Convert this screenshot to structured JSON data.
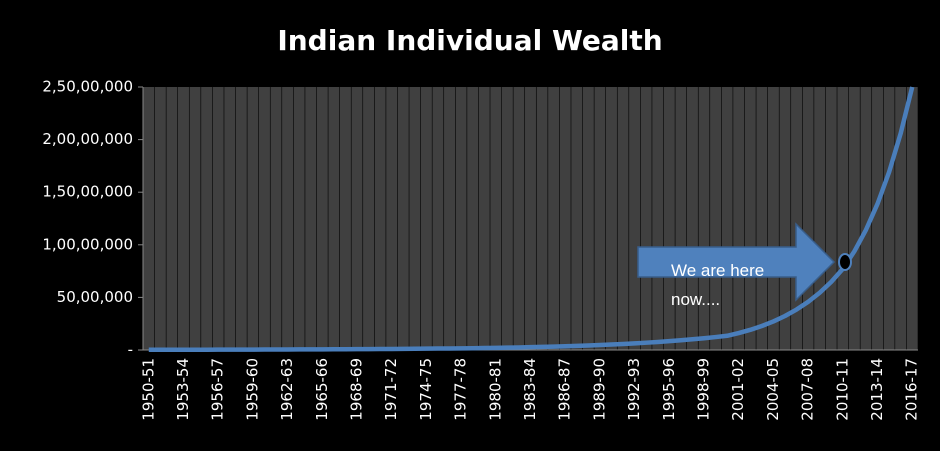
{
  "chart_data": {
    "type": "line",
    "title": "Indian Individual Wealth",
    "categories": [
      "1950-51",
      null,
      null,
      "1953-54",
      null,
      null,
      "1956-57",
      null,
      null,
      "1959-60",
      null,
      null,
      "1962-63",
      null,
      null,
      "1965-66",
      null,
      null,
      "1968-69",
      null,
      null,
      "1971-72",
      null,
      null,
      "1974-75",
      null,
      null,
      "1977-78",
      null,
      null,
      "1980-81",
      null,
      null,
      "1983-84",
      null,
      null,
      "1986-87",
      null,
      null,
      "1989-90",
      null,
      null,
      "1992-93",
      null,
      null,
      "1995-96",
      null,
      null,
      "1998-99",
      null,
      null,
      "2001-02",
      null,
      null,
      "2004-05",
      null,
      null,
      "2007-08",
      null,
      null,
      "2010-11",
      null,
      null,
      "2013-14",
      null,
      null,
      "2016-17"
    ],
    "values": [
      20000,
      21600,
      23300,
      25200,
      27200,
      29400,
      31700,
      34300,
      37000,
      40000,
      43200,
      46600,
      50400,
      54400,
      58700,
      63400,
      68500,
      74000,
      79900,
      86300,
      93200,
      100700,
      108700,
      117400,
      126800,
      137000,
      147900,
      159700,
      172500,
      186300,
      201200,
      221300,
      243500,
      267800,
      294600,
      324000,
      356400,
      392100,
      431300,
      474400,
      521900,
      574000,
      631400,
      694600,
      764100,
      840500,
      924500,
      1017000,
      1118700,
      1230500,
      1353600,
      1610800,
      1916800,
      2281000,
      2714400,
      3230100,
      3843900,
      4574200,
      5443300,
      6477500,
      7708200,
      9380900,
      11416600,
      13894000,
      16909000,
      20578000,
      25000000
    ],
    "color": "#4a7ebb",
    "ylim": [
      0,
      25000000
    ],
    "yticks": [
      {
        "value": 0,
        "label": "-"
      },
      {
        "value": 5000000,
        "label": "50,00,000"
      },
      {
        "value": 10000000,
        "label": "1,00,00,000"
      },
      {
        "value": 15000000,
        "label": "1,50,00,000"
      },
      {
        "value": 20000000,
        "label": "2,00,00,000"
      },
      {
        "value": 25000000,
        "label": "2,50,00,000"
      }
    ],
    "annotation": "We are here now...."
  }
}
